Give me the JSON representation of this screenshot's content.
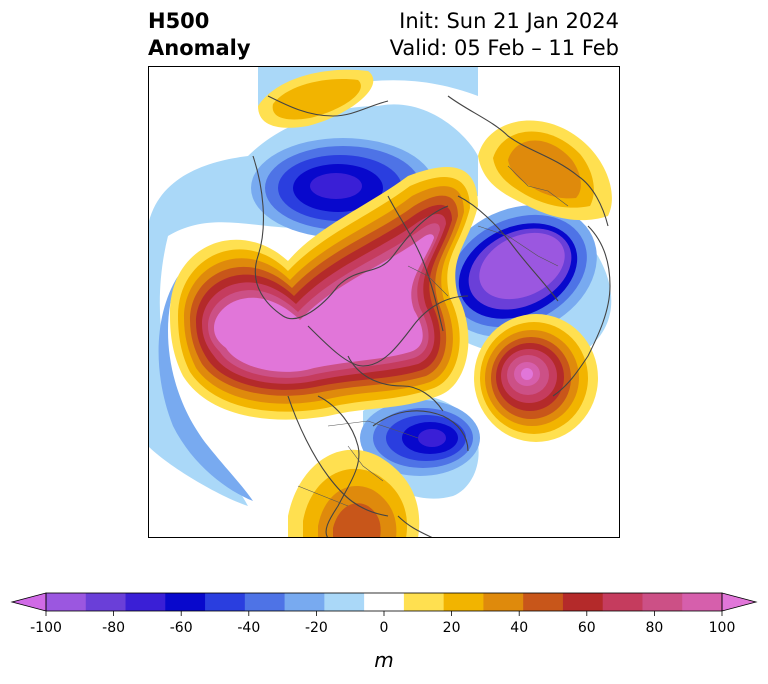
{
  "header": {
    "title_line1": "H500",
    "title_line2": "Anomaly",
    "init_label": "Init: Sun 21 Jan 2024",
    "valid_label": "Valid: 05 Feb – 11 Feb"
  },
  "colorbar": {
    "unit_label": "m",
    "ticks": [
      "-100",
      "-80",
      "-60",
      "-40",
      "-20",
      "0",
      "20",
      "40",
      "60",
      "80",
      "100"
    ],
    "extend": "both",
    "colors": [
      "#d06ae6",
      "#9b57e0",
      "#6a3fd8",
      "#3a1fd6",
      "#0808cc",
      "#2a3edf",
      "#4e73e6",
      "#78aaf0",
      "#aad8f8",
      "#ffffff",
      "#ffe050",
      "#f2b400",
      "#df8a0c",
      "#c8561a",
      "#b42a2a",
      "#c53c5e",
      "#cc5086",
      "#d65fac",
      "#e176d9"
    ]
  },
  "map": {
    "projection": "polar-stereographic-north",
    "region": "Northern Hemisphere",
    "features": [
      {
        "name": "positive-anomaly-pacific-arctic",
        "peak_m": 100
      },
      {
        "name": "negative-anomaly-canada",
        "peak_m": -80
      },
      {
        "name": "negative-anomaly-siberia",
        "peak_m": -80
      },
      {
        "name": "negative-anomaly-europe",
        "peak_m": -100
      },
      {
        "name": "positive-anomaly-north-atlantic",
        "peak_m": 100
      },
      {
        "name": "positive-anomaly-central-asia",
        "peak_m": 50
      },
      {
        "name": "positive-anomaly-mexico",
        "peak_m": 40
      }
    ]
  }
}
